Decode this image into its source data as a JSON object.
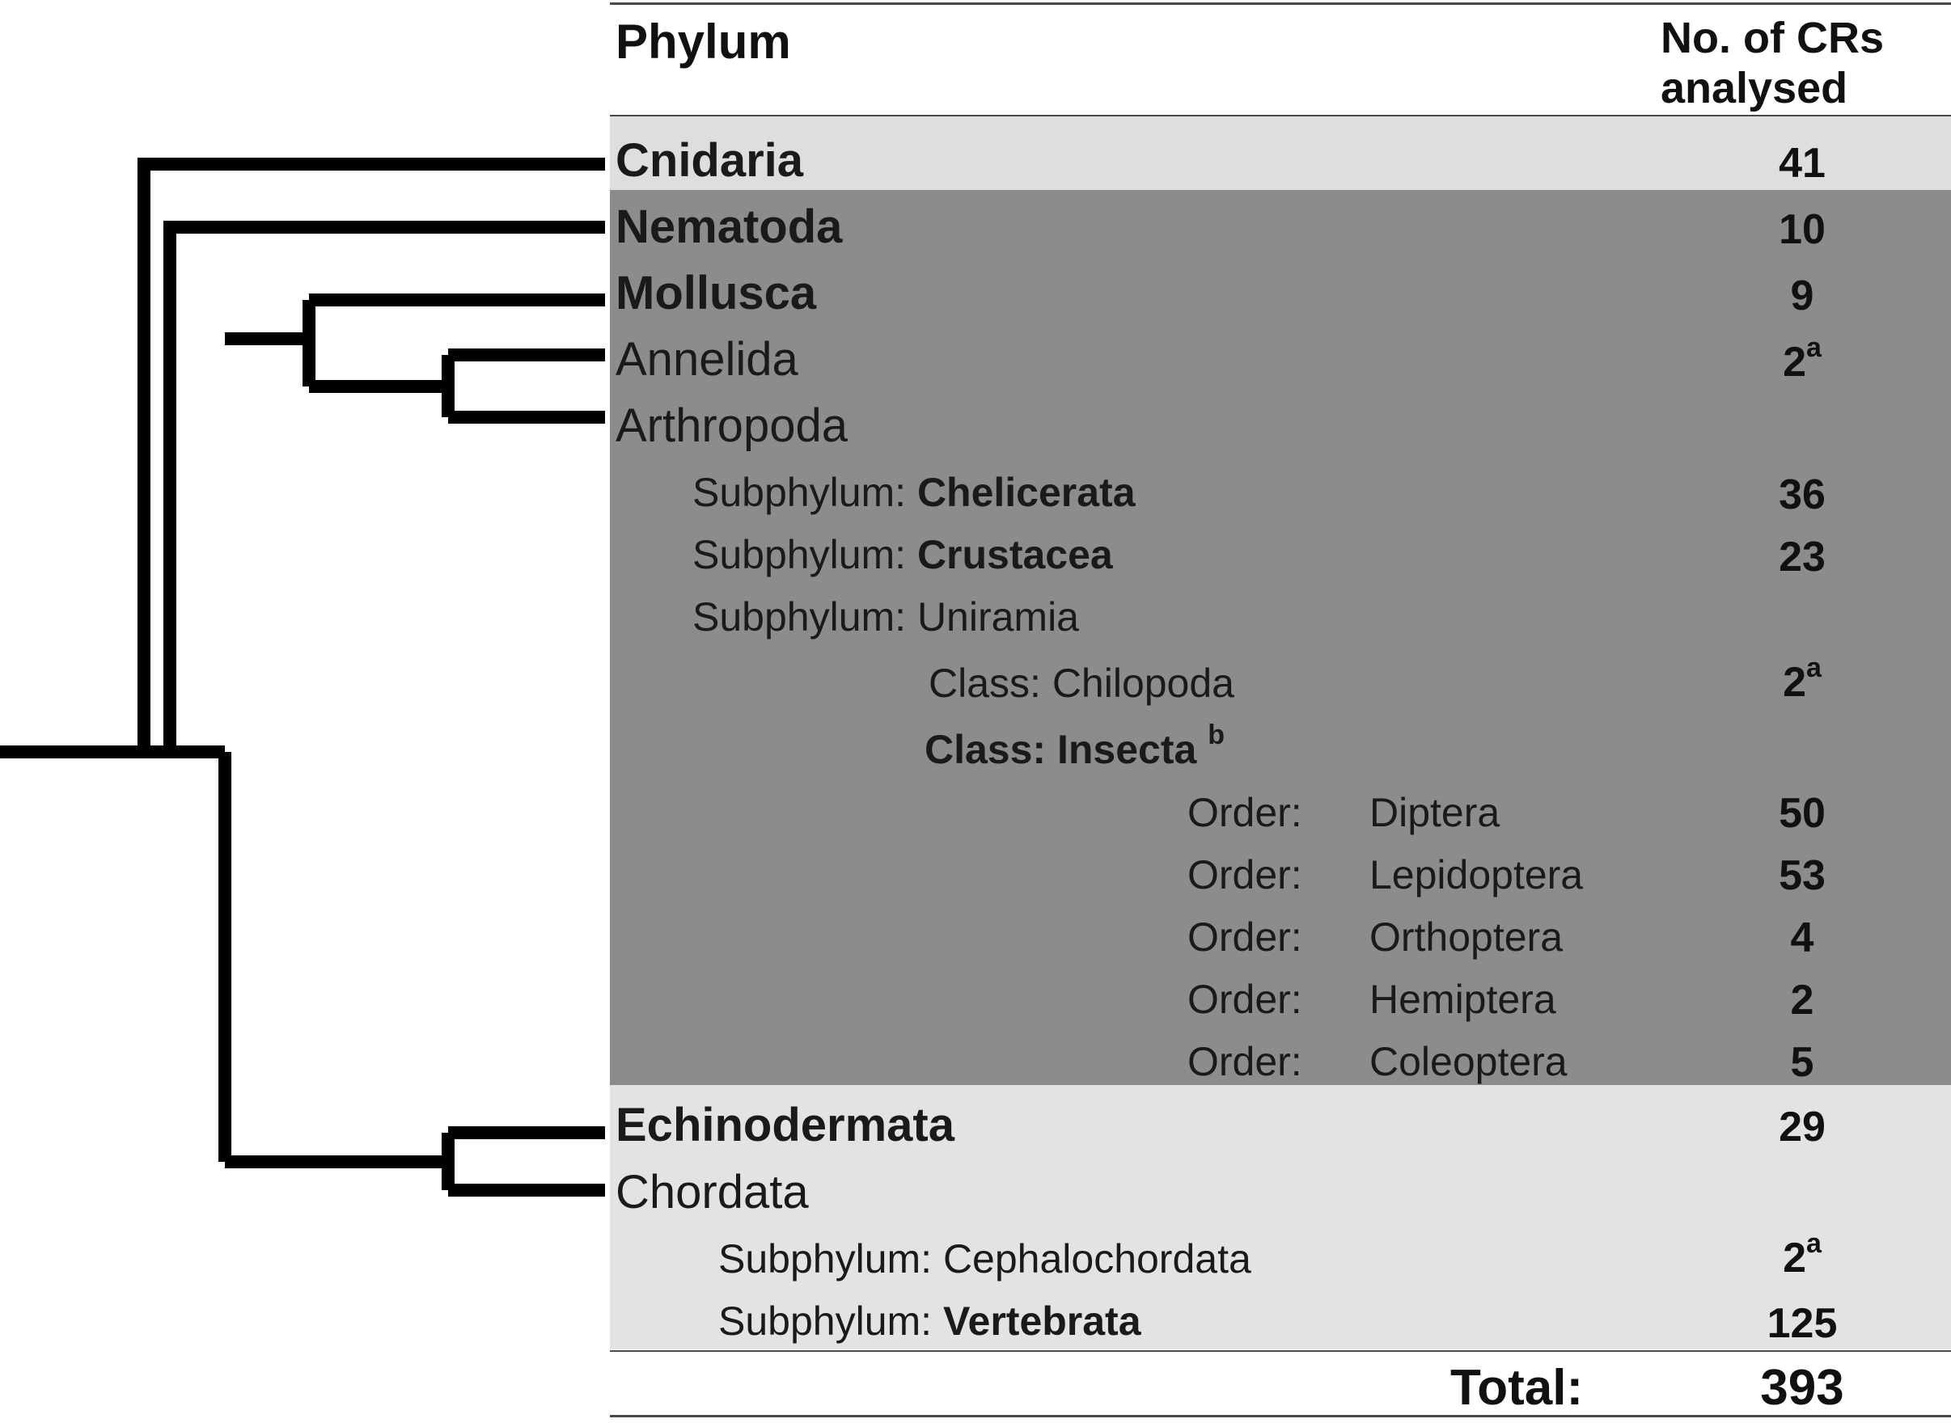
{
  "header": {
    "phylum": "Phylum",
    "count_line1": "No. of CRs",
    "count_line2": "analysed"
  },
  "rows": [
    {
      "prefix": "",
      "name": "Cnidaria",
      "count": "41",
      "sup": ""
    },
    {
      "prefix": "",
      "name": "Nematoda",
      "count": "10",
      "sup": ""
    },
    {
      "prefix": "",
      "name": "Mollusca",
      "count": "9",
      "sup": ""
    },
    {
      "prefix": "",
      "name": "Annelida",
      "count": "2",
      "sup": "a"
    },
    {
      "prefix": "",
      "name": "Arthropoda",
      "count": "",
      "sup": ""
    },
    {
      "prefix": "Subphylum: ",
      "name": "Chelicerata",
      "count": "36",
      "sup": ""
    },
    {
      "prefix": "Subphylum: ",
      "name": "Crustacea",
      "count": "23",
      "sup": ""
    },
    {
      "prefix": "Subphylum: ",
      "name": "Uniramia",
      "count": "",
      "sup": ""
    },
    {
      "prefix": "Class: ",
      "name": "Chilopoda",
      "count": "2",
      "sup": "a"
    },
    {
      "prefix": "Class: ",
      "name": "Insecta",
      "name_sup": "b",
      "count": "",
      "sup": ""
    },
    {
      "prefix": "Order:",
      "name": "Diptera",
      "count": "50",
      "sup": ""
    },
    {
      "prefix": "Order:",
      "name": "Lepidoptera",
      "count": "53",
      "sup": ""
    },
    {
      "prefix": "Order:",
      "name": "Orthoptera",
      "count": "4",
      "sup": ""
    },
    {
      "prefix": "Order:",
      "name": "Hemiptera",
      "count": "2",
      "sup": ""
    },
    {
      "prefix": "Order:",
      "name": "Coleoptera",
      "count": "5",
      "sup": ""
    },
    {
      "prefix": "",
      "name": "Echinodermata",
      "count": "29",
      "sup": ""
    },
    {
      "prefix": "",
      "name": "Chordata",
      "count": "",
      "sup": ""
    },
    {
      "prefix": "Subphylum: ",
      "name": "Cephalochordata",
      "count": "2",
      "sup": "a"
    },
    {
      "prefix": "Subphylum: ",
      "name": "Vertebrata",
      "count": "125",
      "sup": ""
    }
  ],
  "total": {
    "label": "Total:",
    "value": "393"
  }
}
